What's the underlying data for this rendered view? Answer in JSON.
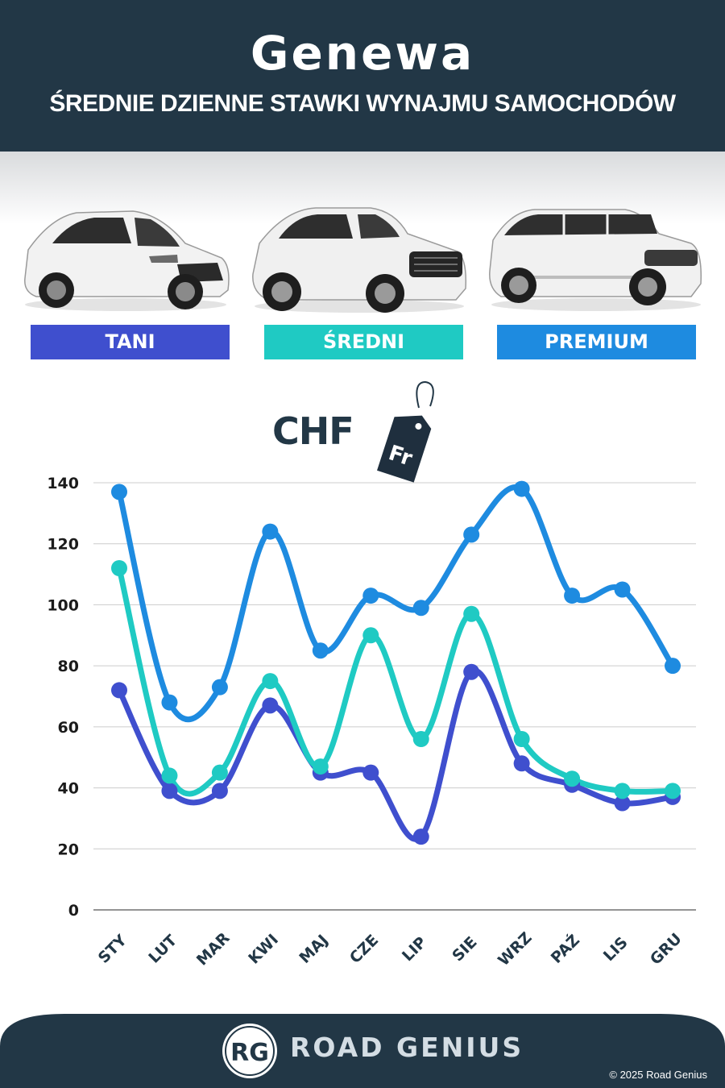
{
  "header": {
    "title": "Genewa",
    "subtitle": "ŚREDNIE DZIENNE STAWKI WYNAJMU SAMOCHODÓW"
  },
  "categories": [
    {
      "label": "TANI",
      "color": "#3f4fce"
    },
    {
      "label": "ŚREDNI",
      "color": "#1fcac3"
    },
    {
      "label": "PREMIUM",
      "color": "#1e8be0"
    }
  ],
  "currency": {
    "code": "CHF",
    "tag_text": "Fr"
  },
  "chart_data": {
    "type": "line",
    "categories": [
      "STY",
      "LUT",
      "MAR",
      "KWI",
      "MAJ",
      "CZE",
      "LIP",
      "SIE",
      "WRZ",
      "PAŹ",
      "LIS",
      "GRU"
    ],
    "series": [
      {
        "name": "TANI",
        "color": "#3f4fce",
        "values": [
          72,
          39,
          39,
          67,
          45,
          45,
          24,
          78,
          48,
          41,
          35,
          37
        ]
      },
      {
        "name": "ŚREDNI",
        "color": "#1fcac3",
        "values": [
          112,
          44,
          45,
          75,
          47,
          90,
          56,
          97,
          56,
          43,
          39,
          39
        ]
      },
      {
        "name": "PREMIUM",
        "color": "#1e8be0",
        "values": [
          137,
          68,
          73,
          124,
          85,
          103,
          99,
          123,
          138,
          103,
          105,
          80
        ]
      }
    ],
    "yticks": [
      0,
      20,
      40,
      60,
      80,
      100,
      120,
      140
    ],
    "ylim": [
      0,
      140
    ],
    "grid": true
  },
  "footer": {
    "logo_text": "RG",
    "brand": "ROAD GENIUS",
    "copyright": "© 2025 Road Genius"
  }
}
